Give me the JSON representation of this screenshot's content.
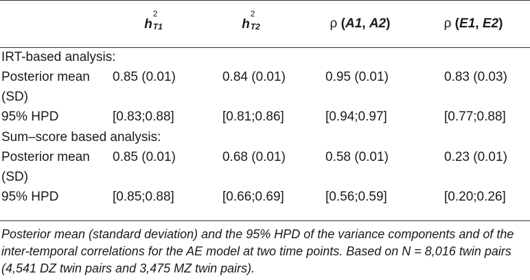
{
  "header": {
    "col1": {
      "sym": "h",
      "sup": "2",
      "sub": "T1"
    },
    "col2": {
      "sym": "h",
      "sup": "2",
      "sub": "T2"
    },
    "col3": {
      "rho": "ρ",
      "open": " (",
      "a": "A1",
      "sep": ", ",
      "b": "A2",
      "close": ")"
    },
    "col4": {
      "rho": "ρ",
      "open": " (",
      "a": "E1",
      "sep": ", ",
      "b": "E2",
      "close": ")"
    }
  },
  "sections": [
    {
      "title": "IRT-based analysis:",
      "mean_label": "Posterior mean (SD)",
      "mean": [
        "0.85 (0.01)",
        "0.84 (0.01)",
        "0.95 (0.01)",
        "0.83 (0.03)"
      ],
      "hpd_label": "95% HPD",
      "hpd": [
        "[0.83;0.88]",
        "[0.81;0.86]",
        "[0.94;0.97]",
        "[0.77;0.88]"
      ]
    },
    {
      "title": "Sum–score based analysis:",
      "mean_label": "Posterior mean (SD)",
      "mean": [
        "0.85 (0.01)",
        "0.68 (0.01)",
        "0.58 (0.01)",
        "0.23 (0.01)"
      ],
      "hpd_label": "95% HPD",
      "hpd": [
        "[0.85;0.88]",
        "[0.66;0.69]",
        "[0.56;0.59]",
        "[0.20;0.26]"
      ]
    }
  ],
  "footnote": "Posterior mean (standard deviation) and the 95% HPD of the variance components and of the inter-temporal correlations for the AE model at two time points. Based on N = 8,016 twin pairs (4,541 DZ twin pairs and 3,475 MZ twin pairs)."
}
